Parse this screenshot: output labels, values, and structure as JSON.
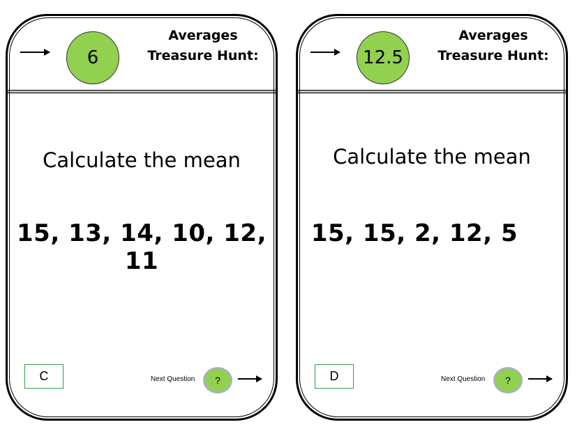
{
  "cards": [
    {
      "answer": "6",
      "title_line1": "Averages",
      "title_line2": "Treasure Hunt:",
      "prompt": "Calculate the mean",
      "numbers": "15, 13, 14, 10, 12, 11",
      "code": "C",
      "next_label": "Next Question",
      "next_icon": "?"
    },
    {
      "answer": "12.5",
      "title_line1": "Averages",
      "title_line2": "Treasure Hunt:",
      "prompt": "Calculate the mean",
      "numbers": "15, 15, 2, 12, 5",
      "code": "D",
      "next_label": "Next Question",
      "next_icon": "?"
    }
  ],
  "colors": {
    "green": "#92d050",
    "code_border": "#2e9e4a"
  }
}
